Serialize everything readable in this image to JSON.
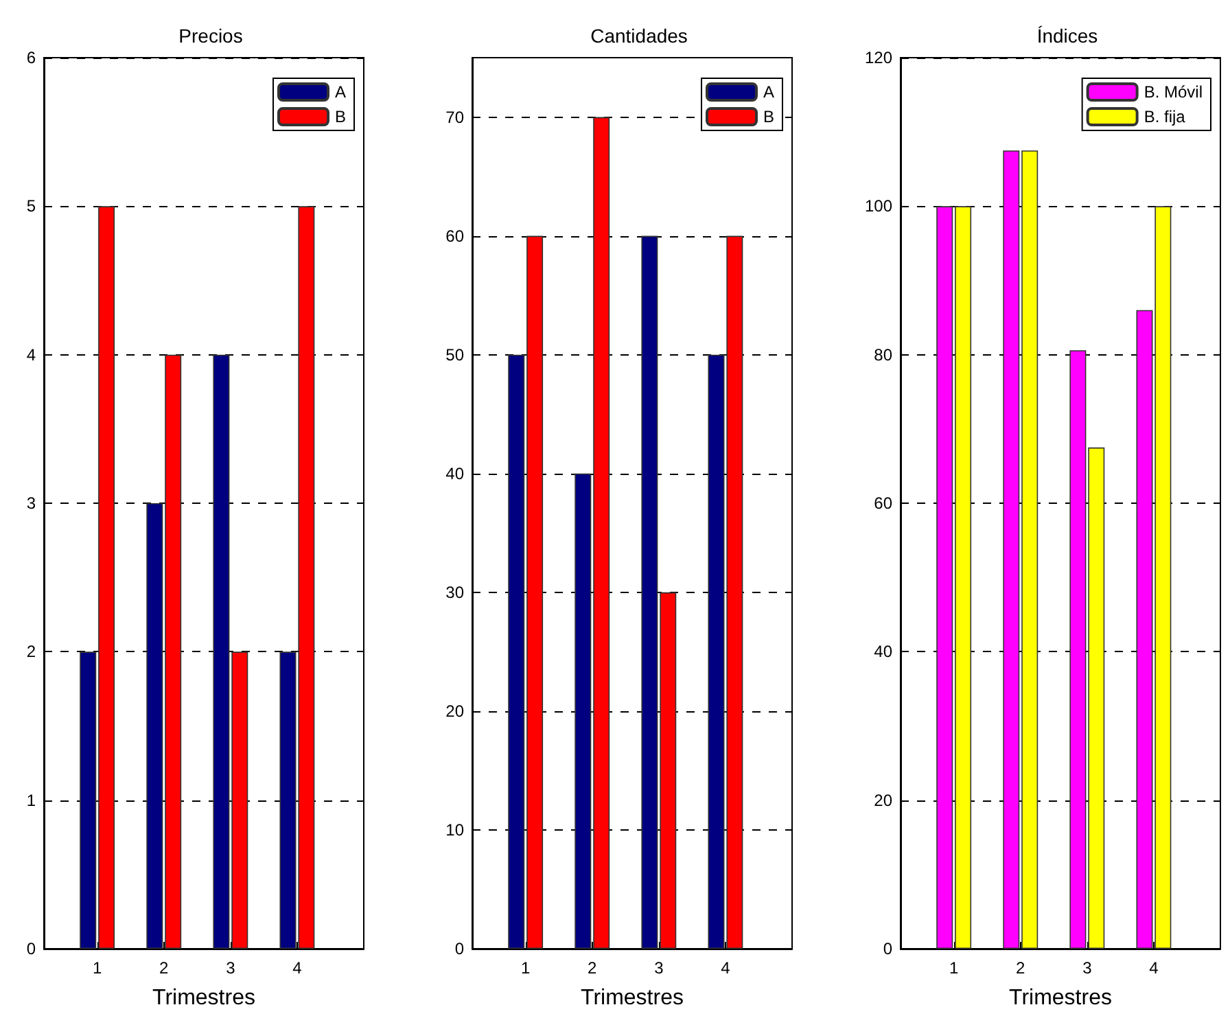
{
  "chart_data": [
    {
      "type": "bar",
      "title": "Precios",
      "xlabel": "Trimestres",
      "x": [
        1,
        2,
        3,
        4
      ],
      "xlim": [
        0.2,
        5
      ],
      "xticks": [
        1,
        2,
        3,
        4
      ],
      "ylim": [
        0,
        6
      ],
      "yticks": [
        0,
        1,
        2,
        3,
        4,
        5,
        6
      ],
      "grid": "y",
      "legend": "top right",
      "series": [
        {
          "name": "A",
          "color": "#000080",
          "values": [
            2,
            3,
            4,
            2
          ]
        },
        {
          "name": "B",
          "color": "#ff0000",
          "values": [
            5,
            4,
            2,
            5
          ]
        }
      ]
    },
    {
      "type": "bar",
      "title": "Cantidades",
      "xlabel": "Trimestres",
      "x": [
        1,
        2,
        3,
        4
      ],
      "xlim": [
        0.2,
        5
      ],
      "xticks": [
        1,
        2,
        3,
        4
      ],
      "ylim": [
        0,
        75
      ],
      "yticks": [
        0,
        10,
        20,
        30,
        40,
        50,
        60,
        70
      ],
      "grid": "y",
      "legend": "top right",
      "series": [
        {
          "name": "A",
          "color": "#000080",
          "values": [
            50,
            40,
            60,
            50
          ]
        },
        {
          "name": "B",
          "color": "#ff0000",
          "values": [
            60,
            70,
            30,
            60
          ]
        }
      ]
    },
    {
      "type": "bar",
      "title": "Índices",
      "xlabel": "Trimestres",
      "x": [
        1,
        2,
        3,
        4
      ],
      "xlim": [
        0.2,
        5
      ],
      "xticks": [
        1,
        2,
        3,
        4
      ],
      "ylim": [
        0,
        120
      ],
      "yticks": [
        0,
        20,
        40,
        60,
        80,
        100,
        120
      ],
      "grid": "y",
      "legend": "top right",
      "series": [
        {
          "name": "B. Móvil",
          "color": "#ff00ff",
          "values": [
            100,
            107.5,
            80.6,
            86
          ]
        },
        {
          "name": "B. fija",
          "color": "#ffff00",
          "values": [
            100,
            107.5,
            67.5,
            100
          ]
        }
      ]
    }
  ]
}
